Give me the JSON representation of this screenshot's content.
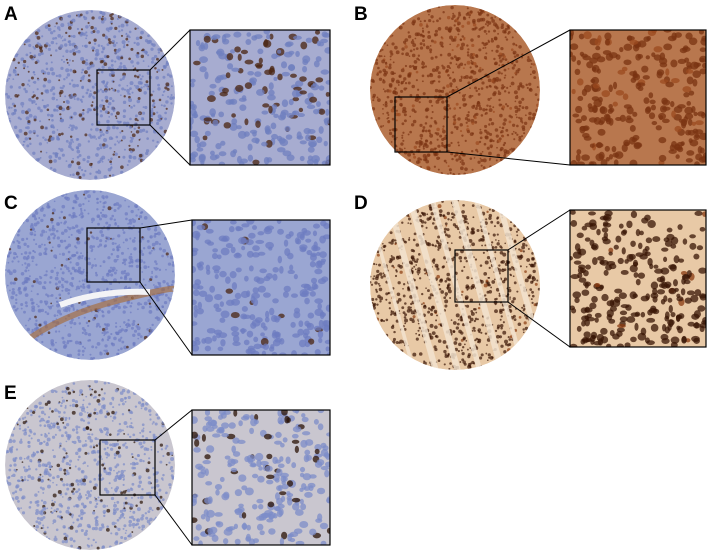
{
  "figure": {
    "panels": [
      {
        "label": "A",
        "tissue_color": "#a7acd0",
        "stain_color": "#4a2410",
        "cell_color": "#6f7fbf",
        "stain_density": 0.25
      },
      {
        "label": "B",
        "tissue_color": "#b8774e",
        "stain_color": "#7a3312",
        "cell_color": "#9b4a1f",
        "stain_density": 0.9
      },
      {
        "label": "C",
        "tissue_color": "#9aa6d2",
        "stain_color": "#4a2410",
        "cell_color": "#6d7cc0",
        "stain_density": 0.05
      },
      {
        "label": "D",
        "tissue_color": "#e8c9a6",
        "stain_color": "#3a1606",
        "cell_color": "#8a3a10",
        "stain_density": 0.95
      },
      {
        "label": "E",
        "tissue_color": "#c9c6cf",
        "stain_color": "#2a1206",
        "cell_color": "#7c8cc8",
        "stain_density": 0.12
      }
    ]
  }
}
